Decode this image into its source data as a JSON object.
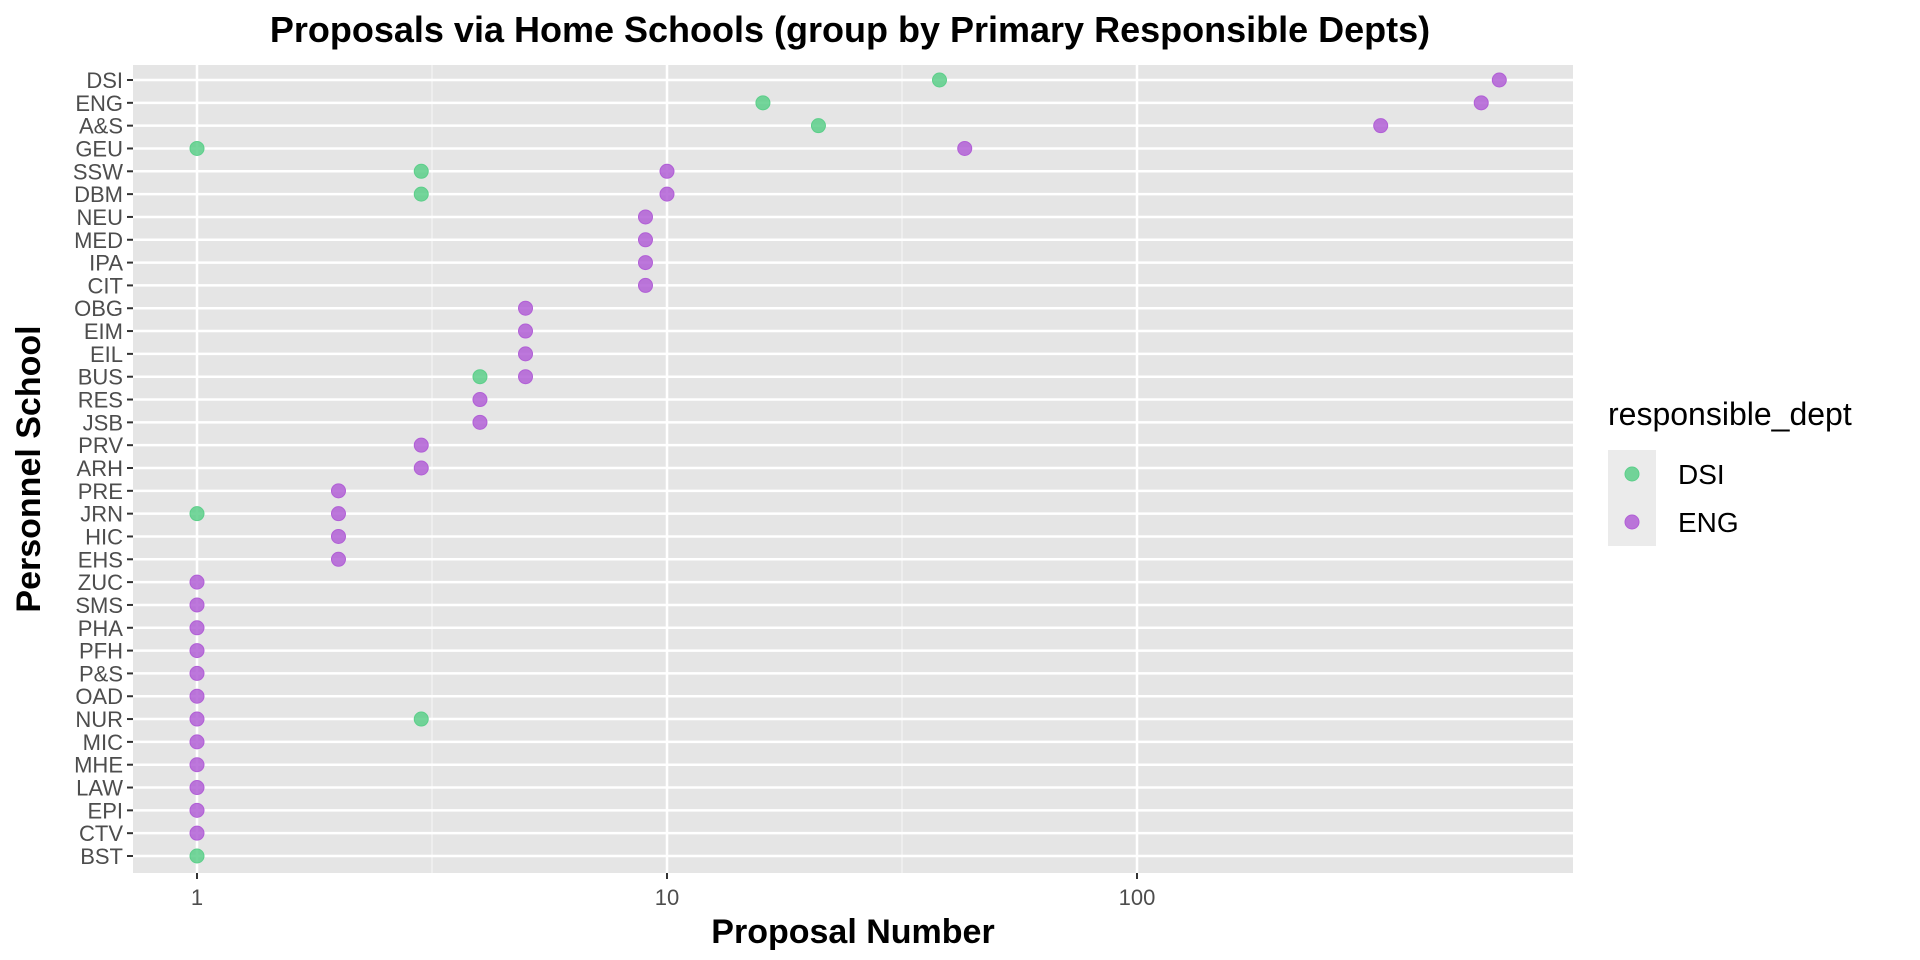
{
  "chart_data": {
    "type": "scatter",
    "title": "Proposals via Home Schools (group by Primary Responsible Depts)",
    "xlabel": "Proposal Number",
    "ylabel": "Personnel School",
    "x_scale": "log10",
    "xlim": [
      0.7,
      800
    ],
    "x_ticks": [
      {
        "value": 1,
        "label": "1"
      },
      {
        "value": 10,
        "label": "10"
      },
      {
        "value": 100,
        "label": "100"
      }
    ],
    "categories": [
      "DSI",
      "ENG",
      "A&S",
      "GEU",
      "SSW",
      "DBM",
      "NEU",
      "MED",
      "IPA",
      "CIT",
      "OBG",
      "EIM",
      "EIL",
      "BUS",
      "RES",
      "JSB",
      "PRV",
      "ARH",
      "PRE",
      "JRN",
      "HIC",
      "EHS",
      "ZUC",
      "SMS",
      "PHA",
      "PFH",
      "P&S",
      "OAD",
      "NUR",
      "MIC",
      "MHE",
      "LAW",
      "EPI",
      "CTV",
      "BST"
    ],
    "grid": true,
    "legend": {
      "title": "responsible_dept",
      "position": "right"
    },
    "series": [
      {
        "name": "DSI",
        "color": "#5ccf8a",
        "points": [
          {
            "y": "DSI",
            "x": 38
          },
          {
            "y": "ENG",
            "x": 16
          },
          {
            "y": "A&S",
            "x": 21
          },
          {
            "y": "GEU",
            "x": 1
          },
          {
            "y": "SSW",
            "x": 3
          },
          {
            "y": "DBM",
            "x": 3
          },
          {
            "y": "BUS",
            "x": 4
          },
          {
            "y": "JRN",
            "x": 1
          },
          {
            "y": "NUR",
            "x": 3
          },
          {
            "y": "BST",
            "x": 1
          }
        ]
      },
      {
        "name": "ENG",
        "color": "#b15fd6",
        "points": [
          {
            "y": "DSI",
            "x": 590
          },
          {
            "y": "ENG",
            "x": 540
          },
          {
            "y": "A&S",
            "x": 330
          },
          {
            "y": "GEU",
            "x": 43
          },
          {
            "y": "SSW",
            "x": 10
          },
          {
            "y": "DBM",
            "x": 10
          },
          {
            "y": "NEU",
            "x": 9
          },
          {
            "y": "MED",
            "x": 9
          },
          {
            "y": "IPA",
            "x": 9
          },
          {
            "y": "CIT",
            "x": 9
          },
          {
            "y": "OBG",
            "x": 5
          },
          {
            "y": "EIM",
            "x": 5
          },
          {
            "y": "EIL",
            "x": 5
          },
          {
            "y": "BUS",
            "x": 5
          },
          {
            "y": "RES",
            "x": 4
          },
          {
            "y": "JSB",
            "x": 4
          },
          {
            "y": "PRV",
            "x": 3
          },
          {
            "y": "ARH",
            "x": 3
          },
          {
            "y": "PRE",
            "x": 2
          },
          {
            "y": "JRN",
            "x": 2
          },
          {
            "y": "HIC",
            "x": 2
          },
          {
            "y": "EHS",
            "x": 2
          },
          {
            "y": "ZUC",
            "x": 1
          },
          {
            "y": "SMS",
            "x": 1
          },
          {
            "y": "PHA",
            "x": 1
          },
          {
            "y": "PFH",
            "x": 1
          },
          {
            "y": "P&S",
            "x": 1
          },
          {
            "y": "OAD",
            "x": 1
          },
          {
            "y": "NUR",
            "x": 1
          },
          {
            "y": "MIC",
            "x": 1
          },
          {
            "y": "MHE",
            "x": 1
          },
          {
            "y": "LAW",
            "x": 1
          },
          {
            "y": "EPI",
            "x": 1
          },
          {
            "y": "CTV",
            "x": 1
          }
        ]
      }
    ]
  }
}
